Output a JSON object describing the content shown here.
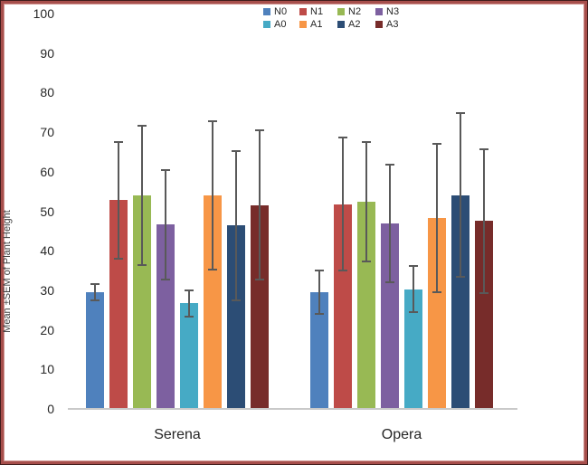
{
  "frame": {
    "border_outer_color": "#421d1c",
    "border_main_color": "#a74f4c",
    "border_inner_color": "#cf928f",
    "background": "#ffffff"
  },
  "chart_data": {
    "type": "bar",
    "title": "",
    "xlabel": "",
    "ylabel": "Mean ±SEM of Plant Height",
    "ylim": [
      0,
      100
    ],
    "yticks": [
      0,
      10,
      20,
      30,
      40,
      50,
      60,
      70,
      80,
      90,
      100
    ],
    "grid": false,
    "legend_position": "top-right",
    "legend_rows": [
      [
        "N0",
        "N1",
        "N2",
        "N3"
      ],
      [
        "A0",
        "A1",
        "A2",
        "A3"
      ]
    ],
    "categories": [
      "Serena",
      "Opera"
    ],
    "series": [
      {
        "name": "N0",
        "color": "#4F81BD",
        "values": [
          29.5,
          29.6
        ],
        "sem": [
          2.3,
          5.7
        ]
      },
      {
        "name": "N1",
        "color": "#BE4B48",
        "values": [
          52.8,
          51.8
        ],
        "sem": [
          15.0,
          17.1
        ]
      },
      {
        "name": "N2",
        "color": "#98B954",
        "values": [
          54.0,
          52.4
        ],
        "sem": [
          17.8,
          15.3
        ]
      },
      {
        "name": "N3",
        "color": "#7D60A0",
        "values": [
          46.6,
          46.8
        ],
        "sem": [
          14.1,
          15.1
        ]
      },
      {
        "name": "A0",
        "color": "#46AAC5",
        "values": [
          26.7,
          30.3
        ],
        "sem": [
          3.5,
          6.0
        ]
      },
      {
        "name": "A1",
        "color": "#F79646",
        "values": [
          54.0,
          48.3
        ],
        "sem": [
          19.1,
          19.0
        ]
      },
      {
        "name": "A2",
        "color": "#2C4D75",
        "values": [
          46.4,
          54.1
        ],
        "sem": [
          19.1,
          21.0
        ]
      },
      {
        "name": "A3",
        "color": "#772C2A",
        "values": [
          51.6,
          47.5
        ],
        "sem": [
          19.2,
          18.4
        ]
      }
    ],
    "error_bar_color": "#595959",
    "axis_line_color": "#c9c9c9"
  }
}
